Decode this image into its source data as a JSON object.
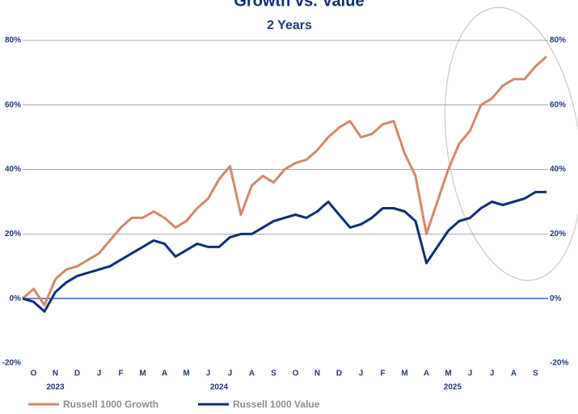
{
  "chart_data": {
    "type": "line",
    "title": "Growth vs. Value",
    "subtitle": "2 Years",
    "x": [
      0,
      0.5,
      1,
      1.5,
      2,
      2.5,
      3,
      3.5,
      4,
      4.5,
      5,
      5.5,
      6,
      6.5,
      7,
      7.5,
      8,
      8.5,
      9,
      9.5,
      10,
      10.5,
      11,
      11.5,
      12,
      12.5,
      13,
      13.5,
      14,
      14.5,
      15,
      15.5,
      16,
      16.5,
      17,
      17.5,
      18,
      18.5,
      19,
      19.5,
      20,
      20.5,
      21,
      21.5,
      22,
      22.5,
      23,
      23.5,
      24
    ],
    "xlim": [
      0,
      24
    ],
    "xticks": [
      {
        "value": 0.5,
        "label": "O"
      },
      {
        "value": 1.5,
        "label": "N"
      },
      {
        "value": 2.5,
        "label": "D"
      },
      {
        "value": 3.5,
        "label": "J"
      },
      {
        "value": 4.5,
        "label": "F"
      },
      {
        "value": 5.5,
        "label": "M"
      },
      {
        "value": 6.5,
        "label": "A"
      },
      {
        "value": 7.5,
        "label": "M"
      },
      {
        "value": 8.5,
        "label": "J"
      },
      {
        "value": 9.5,
        "label": "J"
      },
      {
        "value": 10.5,
        "label": "A"
      },
      {
        "value": 11.5,
        "label": "S"
      },
      {
        "value": 12.5,
        "label": "O"
      },
      {
        "value": 13.5,
        "label": "N"
      },
      {
        "value": 14.5,
        "label": "D"
      },
      {
        "value": 15.5,
        "label": "J"
      },
      {
        "value": 16.5,
        "label": "F"
      },
      {
        "value": 17.5,
        "label": "M"
      },
      {
        "value": 18.5,
        "label": "A"
      },
      {
        "value": 19.5,
        "label": "M"
      },
      {
        "value": 20.5,
        "label": "J"
      },
      {
        "value": 21.5,
        "label": "J"
      },
      {
        "value": 22.5,
        "label": "A"
      },
      {
        "value": 23.5,
        "label": "S"
      }
    ],
    "x_groups": [
      {
        "value": 1.5,
        "label": "2023"
      },
      {
        "value": 9,
        "label": "2024"
      },
      {
        "value": 19.7,
        "label": "2025"
      }
    ],
    "ylim": [
      -20,
      80
    ],
    "yticks": [
      {
        "value": -20,
        "label": "-20%"
      },
      {
        "value": 0,
        "label": "0%"
      },
      {
        "value": 20,
        "label": "20%"
      },
      {
        "value": 40,
        "label": "40%"
      },
      {
        "value": 60,
        "label": "60%"
      },
      {
        "value": 80,
        "label": "80%"
      }
    ],
    "y2lim": [
      -20,
      80
    ],
    "y2ticks": [
      {
        "value": -20,
        "label": "-20%"
      },
      {
        "value": 0,
        "label": "0%"
      },
      {
        "value": 20,
        "label": "20%"
      },
      {
        "value": 40,
        "label": "40%"
      },
      {
        "value": 60,
        "label": "60%"
      },
      {
        "value": 80,
        "label": "80%"
      }
    ],
    "grid": true,
    "zero_line_color": "#3a6fd8",
    "legend": "bottom",
    "series": [
      {
        "name": "Russell 1000 Growth",
        "color": "#d0896a",
        "values": [
          0,
          3,
          -2,
          6,
          9,
          10,
          12,
          14,
          18,
          22,
          25,
          25,
          27,
          25,
          22,
          24,
          28,
          31,
          37,
          41,
          26,
          35,
          38,
          36,
          40,
          42,
          43,
          46,
          50,
          53,
          55,
          50,
          51,
          54,
          55,
          45,
          38,
          20,
          30,
          40,
          48,
          52,
          60,
          62,
          66,
          68,
          68,
          72,
          75
        ]
      },
      {
        "name": "Russell 1000 Value",
        "color": "#0d2f75",
        "values": [
          0,
          -1,
          -4,
          2,
          5,
          7,
          8,
          9,
          10,
          12,
          14,
          16,
          18,
          17,
          13,
          15,
          17,
          16,
          16,
          19,
          20,
          20,
          22,
          24,
          25,
          26,
          25,
          27,
          30,
          26,
          22,
          23,
          25,
          28,
          28,
          27,
          24,
          11,
          16,
          21,
          24,
          25,
          28,
          30,
          29,
          30,
          31,
          33,
          33
        ]
      }
    ]
  }
}
